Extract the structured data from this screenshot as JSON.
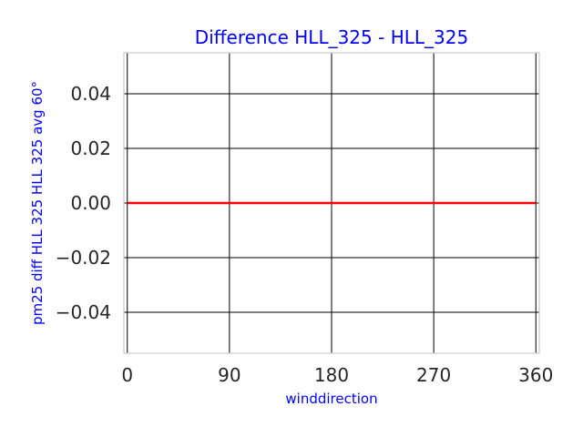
{
  "chart_data": {
    "type": "line",
    "title": "Difference HLL_325 - HLL_325",
    "xlabel": "winddirection",
    "ylabel": "pm25 diff HLL 325 HLL 325 avg 60°",
    "xlim": [
      -3,
      363
    ],
    "ylim": [
      -0.055,
      0.055
    ],
    "x_ticks": [
      0,
      90,
      180,
      270,
      360
    ],
    "x_tick_labels": [
      "0",
      "90",
      "180",
      "270",
      "360"
    ],
    "y_ticks": [
      0.04,
      0.02,
      0.0,
      -0.02,
      -0.04
    ],
    "y_tick_labels": [
      "0.04",
      "0.02",
      "0.00",
      "−0.02",
      "−0.04"
    ],
    "grid": true,
    "series": [
      {
        "x": [
          0,
          60,
          120,
          180,
          240,
          300,
          360
        ],
        "y": [
          0,
          0,
          0,
          0,
          0,
          0,
          0
        ],
        "color": "#ff0000"
      }
    ],
    "colors": {
      "label_text": "#0000ff",
      "grid": "#000000",
      "frame": "#cccccc",
      "tick_text": "#262626"
    }
  }
}
